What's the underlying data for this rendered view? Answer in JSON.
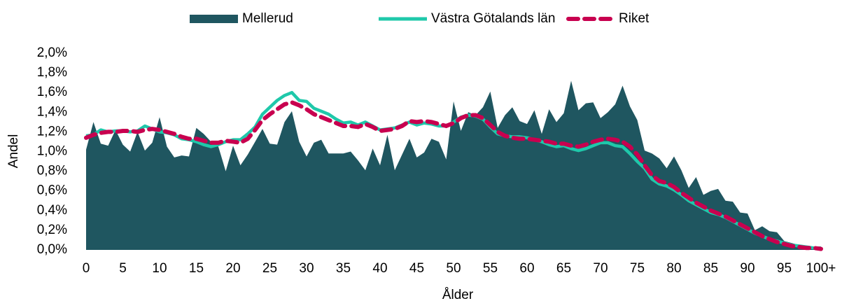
{
  "chart_data": {
    "type": "area-line",
    "x_label": "Ålder",
    "y_label": "Andel",
    "categories": [
      "0",
      null,
      null,
      null,
      null,
      "5",
      null,
      null,
      null,
      null,
      "10",
      null,
      null,
      null,
      null,
      "15",
      null,
      null,
      null,
      null,
      "20",
      null,
      null,
      null,
      null,
      "25",
      null,
      null,
      null,
      null,
      "30",
      null,
      null,
      null,
      null,
      "35",
      null,
      null,
      null,
      null,
      "40",
      null,
      null,
      null,
      null,
      "45",
      null,
      null,
      null,
      null,
      "50",
      null,
      null,
      null,
      null,
      "55",
      null,
      null,
      null,
      null,
      "60",
      null,
      null,
      null,
      null,
      "65",
      null,
      null,
      null,
      null,
      "70",
      null,
      null,
      null,
      null,
      "75",
      null,
      null,
      null,
      null,
      "80",
      null,
      null,
      null,
      null,
      "85",
      null,
      null,
      null,
      null,
      "90",
      null,
      null,
      null,
      null,
      "95",
      null,
      null,
      null,
      null,
      "100+"
    ],
    "series": [
      {
        "name": "Mellerud",
        "kind": "area",
        "color": "#1f5660",
        "values": [
          1.02,
          1.3,
          1.08,
          1.06,
          1.22,
          1.07,
          1.0,
          1.2,
          1.01,
          1.09,
          1.35,
          1.05,
          0.94,
          0.96,
          0.95,
          1.24,
          1.18,
          1.1,
          1.05,
          0.8,
          1.06,
          0.86,
          0.97,
          1.1,
          1.23,
          1.08,
          1.07,
          1.3,
          1.41,
          1.1,
          0.95,
          1.09,
          1.12,
          0.98,
          0.98,
          0.98,
          1.0,
          0.91,
          0.81,
          1.03,
          0.86,
          1.17,
          0.81,
          0.97,
          1.13,
          0.94,
          0.99,
          1.13,
          1.1,
          0.92,
          1.51,
          1.21,
          1.4,
          1.37,
          1.45,
          1.61,
          1.24,
          1.37,
          1.45,
          1.31,
          1.28,
          1.42,
          1.18,
          1.43,
          1.3,
          1.39,
          1.72,
          1.42,
          1.49,
          1.5,
          1.34,
          1.4,
          1.48,
          1.67,
          1.46,
          1.32,
          1.01,
          0.98,
          0.93,
          0.83,
          0.95,
          0.81,
          0.63,
          0.74,
          0.56,
          0.6,
          0.62,
          0.5,
          0.49,
          0.38,
          0.37,
          0.2,
          0.24,
          0.19,
          0.18,
          0.09,
          0.07,
          0.05,
          0.04,
          0.02,
          0.03
        ]
      },
      {
        "name": "Västra Götalands län",
        "kind": "line",
        "color": "#1fc8aa",
        "values": [
          1.16,
          1.17,
          1.22,
          1.2,
          1.21,
          1.21,
          1.2,
          1.21,
          1.26,
          1.23,
          1.2,
          1.19,
          1.17,
          1.13,
          1.12,
          1.1,
          1.07,
          1.05,
          1.07,
          1.1,
          1.12,
          1.12,
          1.18,
          1.25,
          1.38,
          1.45,
          1.52,
          1.57,
          1.6,
          1.52,
          1.51,
          1.44,
          1.41,
          1.38,
          1.33,
          1.29,
          1.3,
          1.27,
          1.3,
          1.26,
          1.22,
          1.23,
          1.24,
          1.27,
          1.3,
          1.27,
          1.29,
          1.28,
          1.26,
          1.26,
          1.3,
          1.35,
          1.37,
          1.36,
          1.33,
          1.25,
          1.18,
          1.16,
          1.15,
          1.15,
          1.14,
          1.12,
          1.1,
          1.07,
          1.05,
          1.06,
          1.03,
          1.01,
          1.03,
          1.06,
          1.09,
          1.09,
          1.06,
          1.05,
          0.98,
          0.9,
          0.83,
          0.72,
          0.67,
          0.65,
          0.61,
          0.56,
          0.5,
          0.46,
          0.42,
          0.38,
          0.36,
          0.33,
          0.29,
          0.25,
          0.21,
          0.17,
          0.14,
          0.11,
          0.09,
          0.07,
          0.05,
          0.04,
          0.03,
          0.02,
          0.02
        ]
      },
      {
        "name": "Riket",
        "kind": "dashed",
        "color": "#c8004f",
        "values": [
          1.14,
          1.17,
          1.19,
          1.2,
          1.2,
          1.21,
          1.21,
          1.2,
          1.22,
          1.23,
          1.22,
          1.2,
          1.18,
          1.15,
          1.13,
          1.13,
          1.11,
          1.09,
          1.09,
          1.11,
          1.1,
          1.09,
          1.13,
          1.22,
          1.32,
          1.38,
          1.43,
          1.48,
          1.5,
          1.47,
          1.43,
          1.38,
          1.35,
          1.32,
          1.29,
          1.26,
          1.26,
          1.25,
          1.28,
          1.25,
          1.21,
          1.22,
          1.23,
          1.26,
          1.31,
          1.3,
          1.31,
          1.3,
          1.28,
          1.26,
          1.29,
          1.34,
          1.37,
          1.37,
          1.34,
          1.27,
          1.2,
          1.16,
          1.14,
          1.13,
          1.13,
          1.12,
          1.11,
          1.1,
          1.08,
          1.08,
          1.06,
          1.05,
          1.07,
          1.1,
          1.12,
          1.13,
          1.12,
          1.1,
          1.05,
          0.97,
          0.86,
          0.76,
          0.7,
          0.68,
          0.64,
          0.58,
          0.53,
          0.48,
          0.44,
          0.4,
          0.37,
          0.34,
          0.3,
          0.26,
          0.22,
          0.18,
          0.14,
          0.11,
          0.08,
          0.06,
          0.04,
          0.03,
          0.02,
          0.02,
          0.01
        ]
      }
    ],
    "ylim": [
      0,
      2
    ],
    "yticks": [
      {
        "value": 0,
        "label": "0,0%"
      },
      {
        "value": 0.2,
        "label": "0,2%"
      },
      {
        "value": 0.4,
        "label": "0,4%"
      },
      {
        "value": 0.6,
        "label": "0,6%"
      },
      {
        "value": 0.8,
        "label": "0,8%"
      },
      {
        "value": 1.0,
        "label": "1,0%"
      },
      {
        "value": 1.2,
        "label": "1,2%"
      },
      {
        "value": 1.4,
        "label": "1,4%"
      },
      {
        "value": 1.6,
        "label": "1,6%"
      },
      {
        "value": 1.8,
        "label": "1,8%"
      },
      {
        "value": 2.0,
        "label": "2,0%"
      }
    ],
    "legend": "top"
  }
}
